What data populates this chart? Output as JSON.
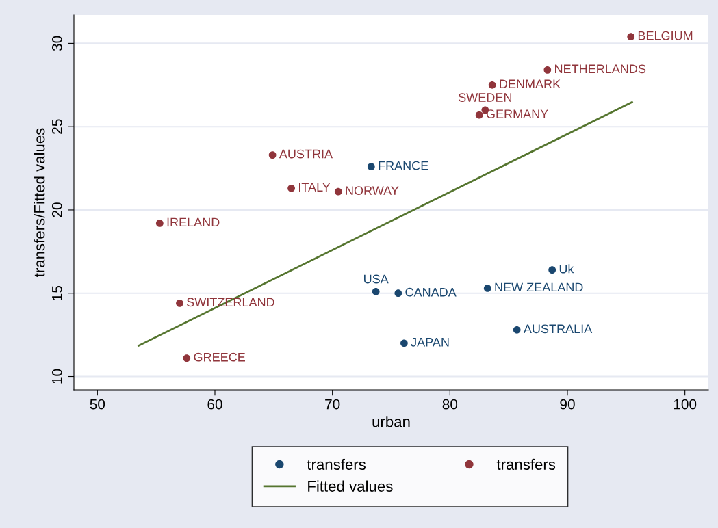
{
  "chart_data": {
    "type": "scatter",
    "xlabel": "urban",
    "ylabel": "transfers/Fitted values",
    "xlim": [
      48,
      102
    ],
    "ylim": [
      9.2,
      31.7
    ],
    "xticks": [
      50,
      60,
      70,
      80,
      90,
      100
    ],
    "yticks": [
      10,
      15,
      20,
      25,
      30
    ],
    "grid": "y",
    "legend": "bottom",
    "series": [
      {
        "name": "transfers",
        "color": "#1a476f",
        "marker": "circle",
        "x": [
          73.3,
          73.7,
          75.6,
          76.1,
          83.2,
          88.7,
          85.7
        ],
        "values": [
          22.6,
          15.1,
          15.0,
          12.0,
          15.3,
          16.4,
          12.8
        ],
        "value_labels": [
          "FRANCE",
          "USA",
          "CANADA",
          "JAPAN",
          "NEW ZEALAND",
          "Uk",
          "AUSTRALIA"
        ]
      },
      {
        "name": "transfers",
        "color": "#90353b",
        "marker": "circle",
        "x": [
          95.4,
          88.3,
          83.6,
          83.0,
          82.5,
          64.9,
          66.5,
          70.5,
          55.3,
          57.0,
          57.6
        ],
        "values": [
          30.4,
          28.4,
          27.5,
          26.0,
          25.7,
          23.3,
          21.3,
          21.1,
          19.2,
          14.4,
          11.1
        ],
        "value_labels": [
          "BELGIUM",
          "NETHERLANDS",
          "DENMARK",
          "SWEDEN",
          "GERMANY",
          "AUSTRIA",
          "ITALY",
          "NORWAY",
          "IRELAND",
          "SWITZERLAND",
          "GREECE"
        ]
      },
      {
        "name": "Fitted values",
        "type": "line",
        "color": "#55752f",
        "x": [
          53.5,
          95.5
        ],
        "values": [
          11.85,
          26.47
        ]
      }
    ]
  }
}
